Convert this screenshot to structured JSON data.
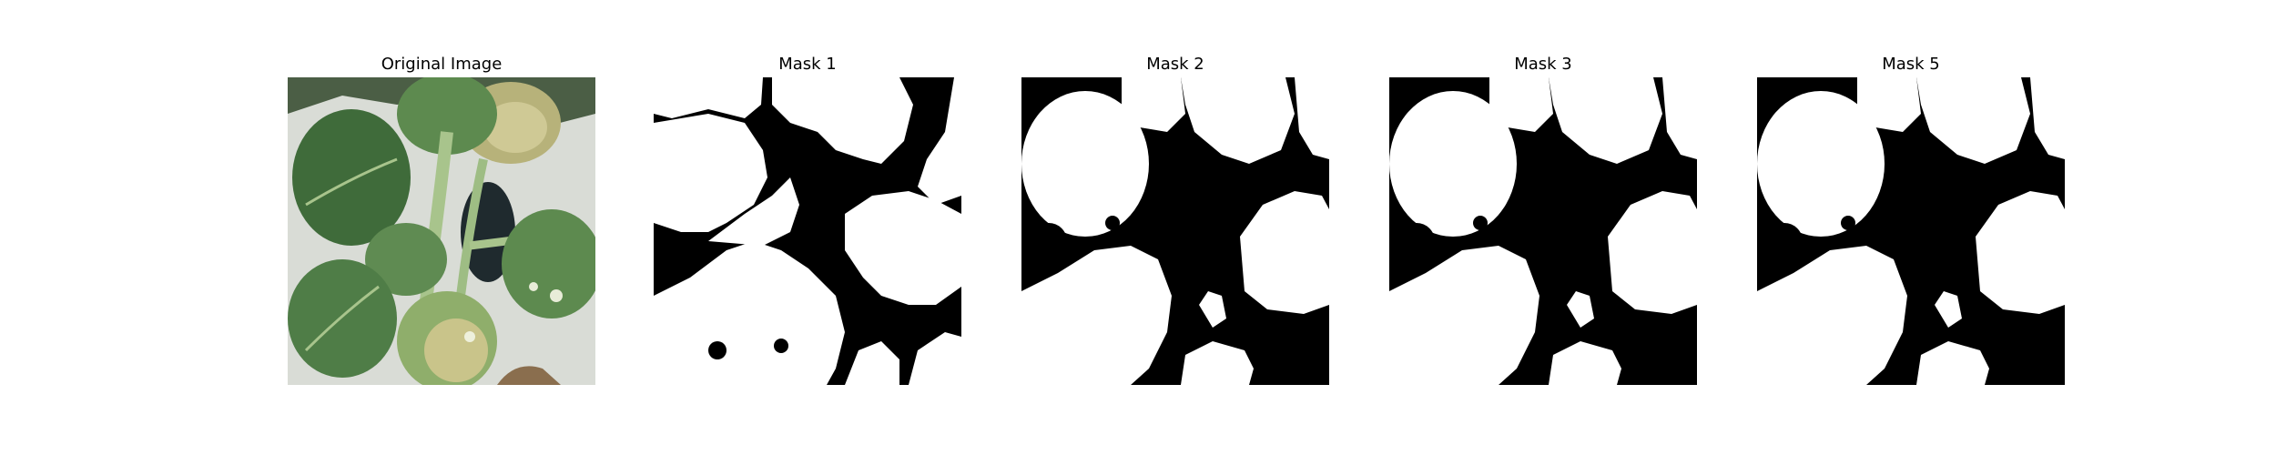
{
  "panels": [
    {
      "title": "Original Image",
      "kind": "photo",
      "subject": "leaf-photo"
    },
    {
      "title": "Mask 1",
      "kind": "mask",
      "foreground": "#ffffff",
      "background": "#000000"
    },
    {
      "title": "Mask 2",
      "kind": "mask",
      "foreground": "#ffffff",
      "background": "#000000"
    },
    {
      "title": "Mask 3",
      "kind": "mask",
      "foreground": "#ffffff",
      "background": "#000000"
    },
    {
      "title": "Mask 5",
      "kind": "mask",
      "foreground": "#ffffff",
      "background": "#000000"
    }
  ],
  "colors": {
    "page_background": "#ffffff",
    "leaf_dark": "#3f6b3a",
    "leaf_mid": "#5d8a4f",
    "leaf_light": "#8fae6b",
    "leaf_yellow": "#c9c48a",
    "stem": "#a8c48c",
    "photo_background": "#d9dcd6",
    "shadow": "#1f2a2e"
  }
}
